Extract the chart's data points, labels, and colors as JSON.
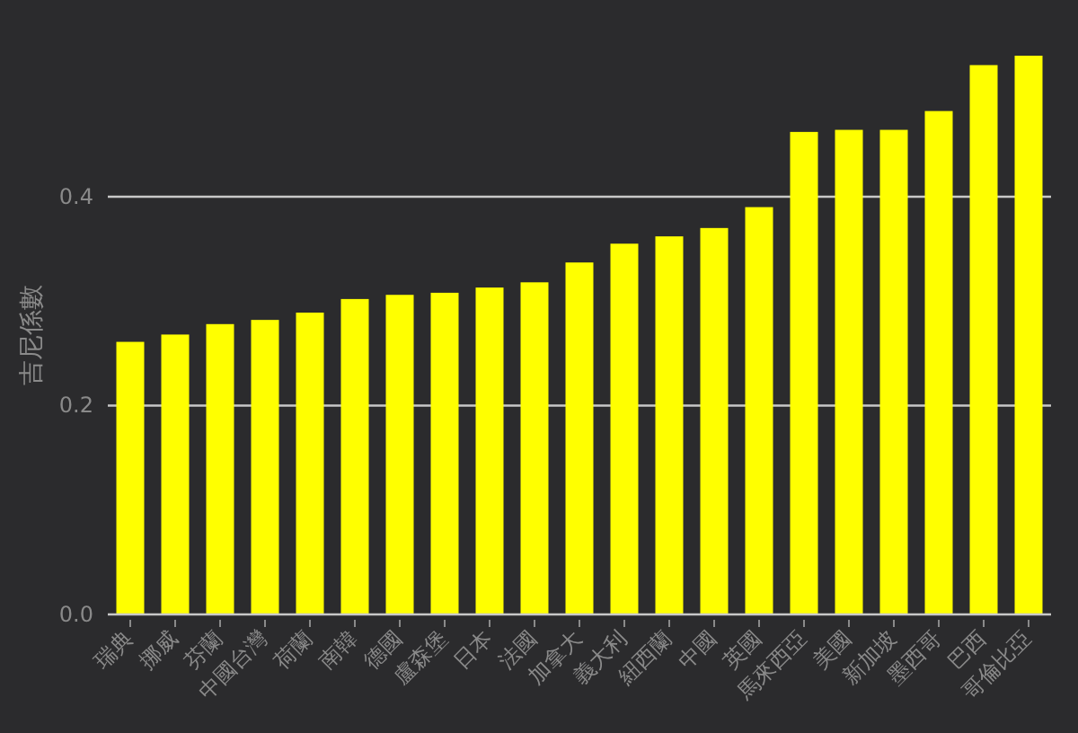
{
  "chart_data": {
    "type": "bar",
    "ylabel": "吉尼係數",
    "categories": [
      "瑞典",
      "挪威",
      "芬蘭",
      "中國台灣",
      "荷蘭",
      "南韓",
      "德國",
      "盧森堡",
      "日本",
      "法國",
      "加拿大",
      "義大利",
      "紐西蘭",
      "中國",
      "英國",
      "馬來西亞",
      "美國",
      "新加坡",
      "墨西哥",
      "巴西",
      "哥倫比亞"
    ],
    "values": [
      0.261,
      0.268,
      0.278,
      0.282,
      0.289,
      0.302,
      0.306,
      0.308,
      0.313,
      0.318,
      0.337,
      0.355,
      0.362,
      0.37,
      0.39,
      0.462,
      0.464,
      0.464,
      0.482,
      0.526,
      0.535
    ],
    "color": "#ffff00",
    "ylim": [
      0,
      0.535
    ],
    "yticks": [
      {
        "value": 0,
        "label": "0.0"
      },
      {
        "value": 0.2,
        "label": "0.2"
      },
      {
        "value": 0.4,
        "label": "0.4"
      }
    ],
    "grid": "y"
  }
}
